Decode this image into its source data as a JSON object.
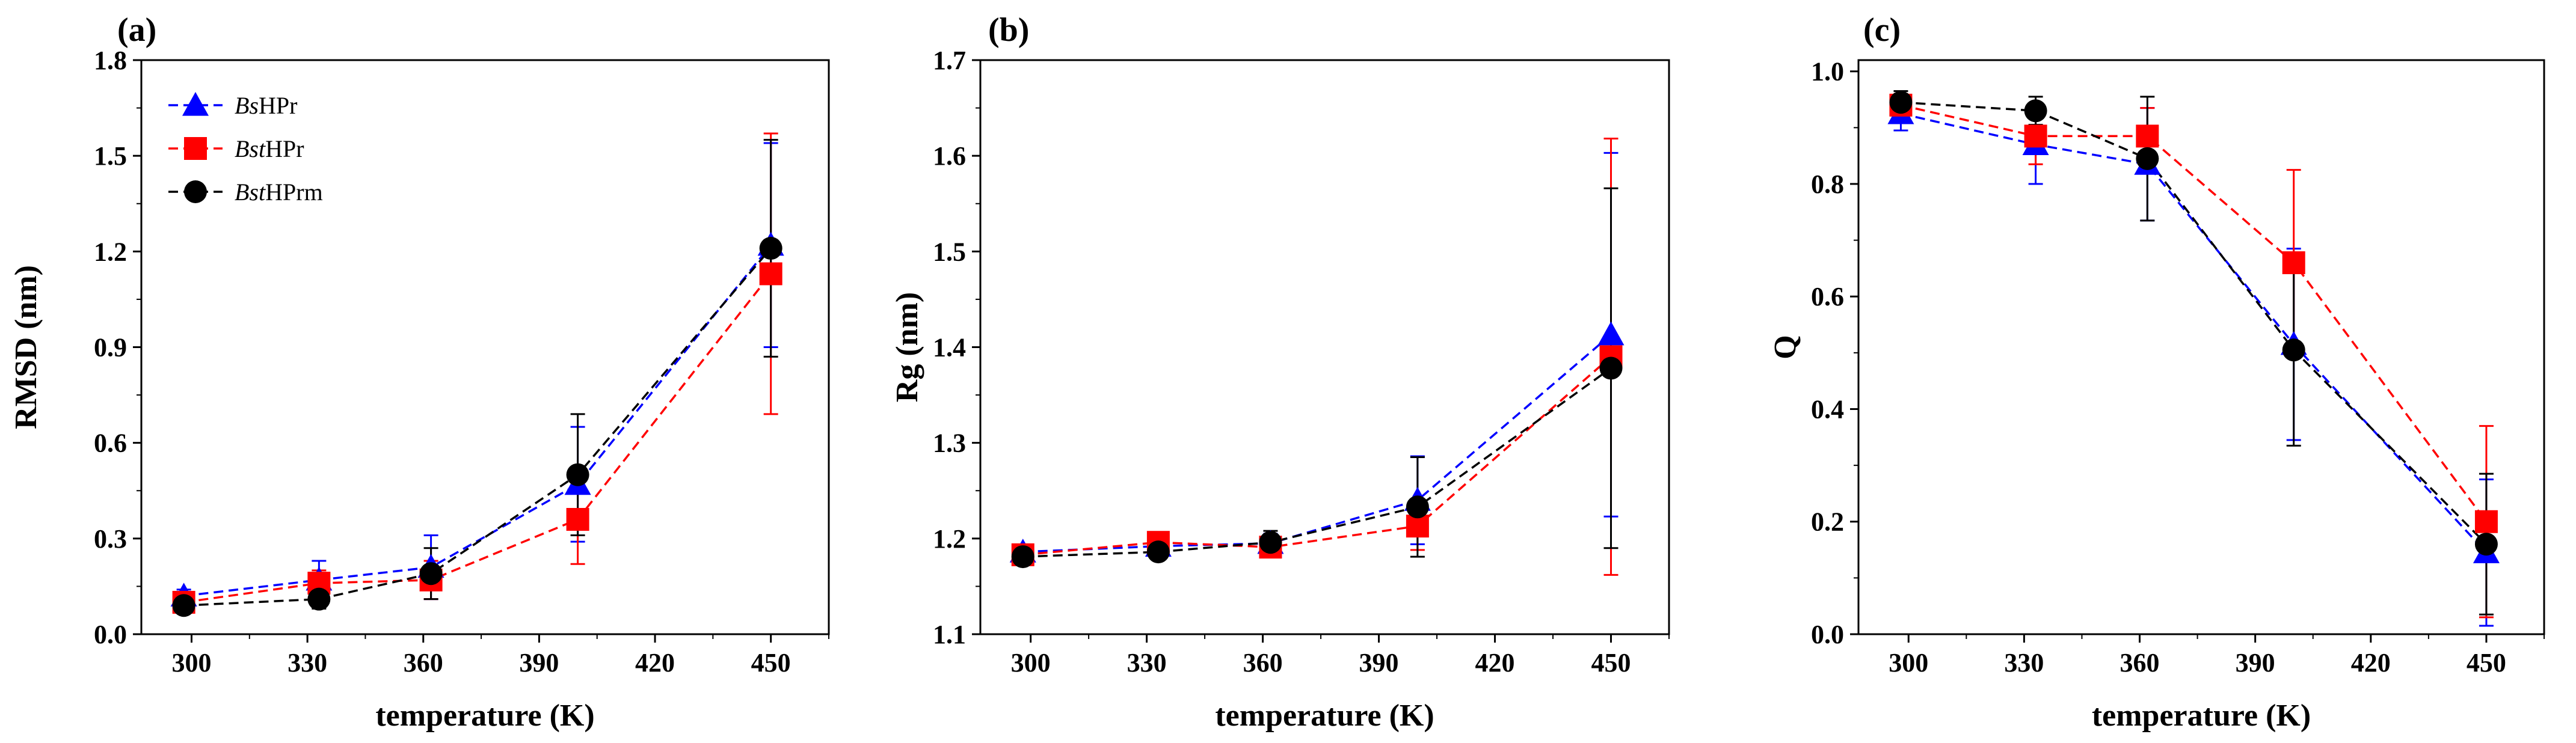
{
  "chart_data": [
    {
      "type": "line",
      "panel_label": "(a)",
      "xlabel": "temperature (K)",
      "ylabel": "RMSD (nm)",
      "xlim": [
        287,
        465
      ],
      "ylim": [
        0.0,
        1.8
      ],
      "xticks": [
        300,
        330,
        360,
        390,
        420,
        450
      ],
      "yticks": [
        0.0,
        0.3,
        0.6,
        0.9,
        1.2,
        1.5,
        1.8
      ],
      "ytick_labels": [
        "0.0",
        "0.3",
        "0.6",
        "0.9",
        "1.2",
        "1.5",
        "1.8"
      ],
      "legend": {
        "position": "top-left",
        "entries": [
          {
            "italic": "Bs",
            "rest": "HPr"
          },
          {
            "italic": "Bst",
            "rest": "HPr"
          },
          {
            "italic": "Bst",
            "rest": "HPrm"
          }
        ]
      },
      "series": [
        {
          "name": "BsHPr",
          "color": "#0000ff",
          "marker": "triangle",
          "x": [
            298,
            333,
            362,
            400,
            450
          ],
          "y": [
            0.12,
            0.17,
            0.21,
            0.47,
            1.22
          ],
          "err": [
            0.02,
            0.06,
            0.1,
            0.18,
            0.32
          ]
        },
        {
          "name": "BstHPr",
          "color": "#ff0000",
          "marker": "square",
          "x": [
            298,
            333,
            362,
            400,
            450
          ],
          "y": [
            0.1,
            0.16,
            0.17,
            0.36,
            1.13
          ],
          "err": [
            0.02,
            0.04,
            0.06,
            0.14,
            0.44
          ]
        },
        {
          "name": "BstHPrm",
          "color": "#000000",
          "marker": "circle",
          "x": [
            298,
            333,
            362,
            400,
            450
          ],
          "y": [
            0.09,
            0.11,
            0.19,
            0.5,
            1.21
          ],
          "err": [
            0.02,
            0.03,
            0.08,
            0.19,
            0.34
          ]
        }
      ]
    },
    {
      "type": "line",
      "panel_label": "(b)",
      "xlabel": "temperature (K)",
      "ylabel": "Rg (nm)",
      "xlim": [
        287,
        465
      ],
      "ylim": [
        1.1,
        1.7
      ],
      "xticks": [
        300,
        330,
        360,
        390,
        420,
        450
      ],
      "yticks": [
        1.1,
        1.2,
        1.3,
        1.4,
        1.5,
        1.6,
        1.7
      ],
      "ytick_labels": [
        "1.1",
        "1.2",
        "1.3",
        "1.4",
        "1.5",
        "1.6",
        "1.7"
      ],
      "series": [
        {
          "name": "BsHPr",
          "color": "#0000ff",
          "marker": "triangle",
          "x": [
            298,
            333,
            362,
            400,
            450
          ],
          "y": [
            1.186,
            1.192,
            1.195,
            1.24,
            1.413
          ],
          "err": [
            0.004,
            0.005,
            0.01,
            0.046,
            0.19
          ]
        },
        {
          "name": "BstHPr",
          "color": "#ff0000",
          "marker": "square",
          "x": [
            298,
            333,
            362,
            400,
            450
          ],
          "y": [
            1.183,
            1.196,
            1.191,
            1.213,
            1.39
          ],
          "err": [
            0.004,
            0.006,
            0.008,
            0.025,
            0.228
          ]
        },
        {
          "name": "BstHPrm",
          "color": "#000000",
          "marker": "circle",
          "x": [
            298,
            333,
            362,
            400,
            450
          ],
          "y": [
            1.181,
            1.186,
            1.196,
            1.233,
            1.378
          ],
          "err": [
            0.004,
            0.005,
            0.012,
            0.052,
            0.188
          ]
        }
      ]
    },
    {
      "type": "line",
      "panel_label": "(c)",
      "xlabel": "temperature (K)",
      "ylabel": "Q",
      "xlim": [
        287,
        465
      ],
      "ylim": [
        0.0,
        1.02
      ],
      "xticks": [
        300,
        330,
        360,
        390,
        420,
        450
      ],
      "yticks": [
        0.0,
        0.2,
        0.4,
        0.6,
        0.8,
        1.0
      ],
      "ytick_labels": [
        "0.0",
        "0.2",
        "0.4",
        "0.6",
        "0.8",
        "1.0"
      ],
      "series": [
        {
          "name": "BsHPr",
          "color": "#0000ff",
          "marker": "triangle",
          "x": [
            298,
            333,
            362,
            400,
            450
          ],
          "y": [
            0.925,
            0.87,
            0.835,
            0.515,
            0.145
          ],
          "err": [
            0.03,
            0.07,
            0.1,
            0.17,
            0.13
          ]
        },
        {
          "name": "BstHPr",
          "color": "#ff0000",
          "marker": "square",
          "x": [
            298,
            333,
            362,
            400,
            450
          ],
          "y": [
            0.94,
            0.885,
            0.885,
            0.66,
            0.2
          ],
          "err": [
            0.02,
            0.05,
            0.05,
            0.165,
            0.17
          ]
        },
        {
          "name": "BstHPrm",
          "color": "#000000",
          "marker": "circle",
          "x": [
            298,
            333,
            362,
            400,
            450
          ],
          "y": [
            0.945,
            0.93,
            0.845,
            0.505,
            0.16
          ],
          "err": [
            0.02,
            0.025,
            0.11,
            0.17,
            0.125
          ]
        }
      ]
    }
  ]
}
